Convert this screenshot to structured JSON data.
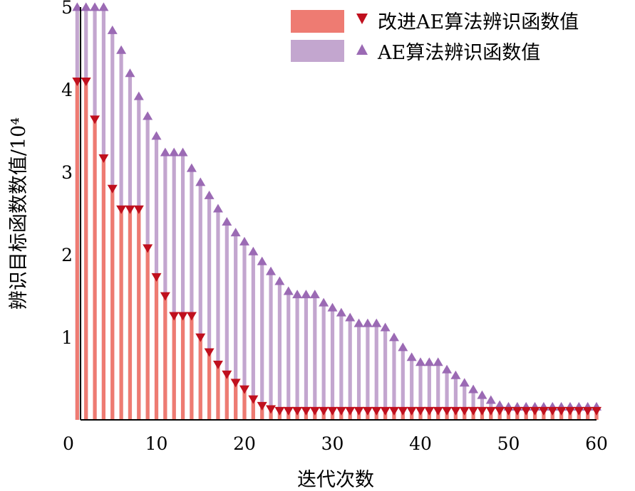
{
  "chart_data": {
    "type": "bar",
    "xlabel": "迭代次数",
    "ylabel": "辨识目标函数数值/10⁴",
    "xlim": [
      0,
      60
    ],
    "ylim": [
      0,
      5
    ],
    "x_ticks": [
      0,
      10,
      20,
      30,
      40,
      50,
      60
    ],
    "y_ticks": [
      1,
      2,
      3,
      4,
      5
    ],
    "legend_position": "top-right",
    "x": [
      1,
      2,
      3,
      4,
      5,
      6,
      7,
      8,
      9,
      10,
      11,
      12,
      13,
      14,
      15,
      16,
      17,
      18,
      19,
      20,
      21,
      22,
      23,
      24,
      25,
      26,
      27,
      28,
      29,
      30,
      31,
      32,
      33,
      34,
      35,
      36,
      37,
      38,
      39,
      40,
      41,
      42,
      43,
      44,
      45,
      46,
      47,
      48,
      49,
      50,
      51,
      52,
      53,
      54,
      55,
      56,
      57,
      58,
      59,
      60
    ],
    "series": [
      {
        "name": "AE算法辨识函数值",
        "bar_color": "#c3a6cf",
        "marker": "triangle-up",
        "marker_color": "#9b6ab4",
        "values": [
          5.0,
          5.0,
          5.0,
          5.0,
          4.72,
          4.48,
          4.2,
          3.92,
          3.68,
          3.44,
          3.24,
          3.24,
          3.24,
          3.05,
          2.88,
          2.72,
          2.56,
          2.4,
          2.27,
          2.16,
          2.04,
          1.92,
          1.8,
          1.68,
          1.56,
          1.52,
          1.52,
          1.52,
          1.42,
          1.36,
          1.3,
          1.24,
          1.17,
          1.17,
          1.17,
          1.12,
          1.0,
          0.88,
          0.76,
          0.7,
          0.7,
          0.7,
          0.61,
          0.54,
          0.45,
          0.37,
          0.3,
          0.24,
          0.18,
          0.16,
          0.16,
          0.16,
          0.16,
          0.16,
          0.16,
          0.16,
          0.16,
          0.16,
          0.16,
          0.16
        ]
      },
      {
        "name": "改进AE算法辨识函数值",
        "bar_color": "#ee7b72",
        "marker": "triangle-down",
        "marker_color": "#c0101e",
        "values": [
          4.1,
          4.1,
          3.64,
          3.17,
          2.8,
          2.55,
          2.55,
          2.55,
          2.08,
          1.73,
          1.5,
          1.26,
          1.26,
          1.26,
          1.0,
          0.82,
          0.67,
          0.55,
          0.45,
          0.37,
          0.25,
          0.17,
          0.13,
          0.11,
          0.11,
          0.11,
          0.11,
          0.11,
          0.11,
          0.11,
          0.11,
          0.11,
          0.11,
          0.11,
          0.11,
          0.11,
          0.11,
          0.11,
          0.11,
          0.11,
          0.11,
          0.11,
          0.11,
          0.11,
          0.11,
          0.11,
          0.11,
          0.11,
          0.11,
          0.11,
          0.11,
          0.11,
          0.11,
          0.11,
          0.11,
          0.11,
          0.11,
          0.11,
          0.11,
          0.11
        ]
      }
    ]
  }
}
